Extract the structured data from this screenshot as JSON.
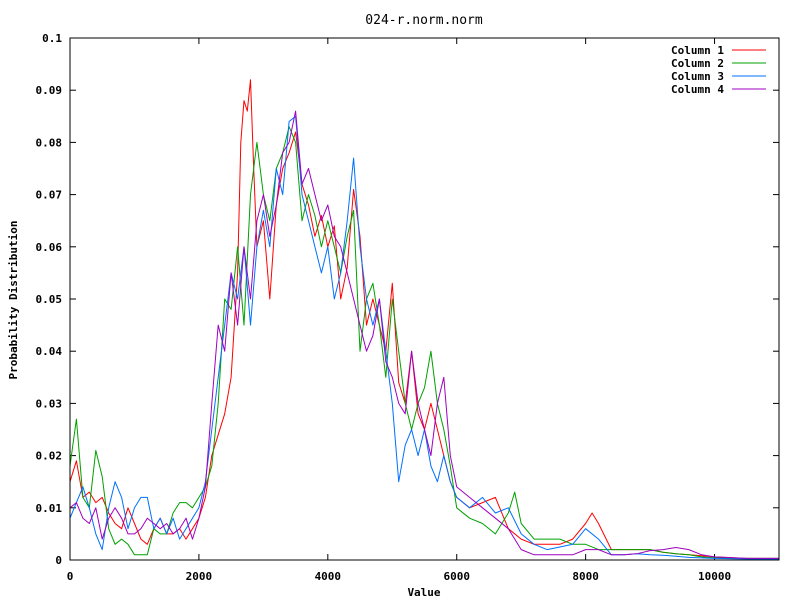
{
  "chart_data": {
    "type": "line",
    "title": "024-r.norm.norm",
    "xlabel": "Value",
    "ylabel": "Probability Distribution",
    "xlim": [
      0,
      11000
    ],
    "ylim": [
      0,
      0.1
    ],
    "x_ticks": [
      0,
      2000,
      4000,
      6000,
      8000,
      10000
    ],
    "x_tick_labels": [
      "0",
      "2000",
      "4000",
      "6000",
      "8000",
      "10000"
    ],
    "y_ticks": [
      0,
      0.01,
      0.02,
      0.03,
      0.04,
      0.05,
      0.06,
      0.07,
      0.08,
      0.09,
      0.1
    ],
    "y_tick_labels": [
      "0",
      "0.01",
      "0.02",
      "0.03",
      "0.04",
      "0.05",
      "0.06",
      "0.07",
      "0.08",
      "0.09",
      "0.1"
    ],
    "grid": false,
    "legend_position": "top-right",
    "series": [
      {
        "name": "Column 1",
        "color": "#ff0000",
        "x": [
          0,
          100,
          200,
          300,
          400,
          500,
          600,
          700,
          800,
          900,
          1000,
          1100,
          1200,
          1300,
          1400,
          1500,
          1600,
          1700,
          1800,
          1900,
          2000,
          2100,
          2200,
          2300,
          2400,
          2500,
          2600,
          2650,
          2700,
          2750,
          2800,
          2850,
          2900,
          3000,
          3100,
          3200,
          3300,
          3400,
          3500,
          3600,
          3700,
          3800,
          3900,
          4000,
          4100,
          4200,
          4300,
          4400,
          4500,
          4600,
          4700,
          4800,
          4900,
          5000,
          5100,
          5200,
          5300,
          5400,
          5500,
          5600,
          5700,
          5800,
          5900,
          6000,
          6200,
          6400,
          6600,
          6800,
          7000,
          7200,
          7400,
          7600,
          7800,
          8000,
          8100,
          8200,
          8400,
          8600,
          8800,
          9000,
          9200,
          9400,
          9600,
          9800,
          10000,
          10500,
          11000
        ],
        "values": [
          0.015,
          0.019,
          0.012,
          0.013,
          0.011,
          0.012,
          0.009,
          0.007,
          0.006,
          0.01,
          0.007,
          0.004,
          0.003,
          0.006,
          0.008,
          0.005,
          0.005,
          0.006,
          0.004,
          0.006,
          0.008,
          0.012,
          0.02,
          0.024,
          0.028,
          0.035,
          0.055,
          0.08,
          0.088,
          0.086,
          0.092,
          0.075,
          0.06,
          0.065,
          0.05,
          0.068,
          0.075,
          0.078,
          0.082,
          0.072,
          0.068,
          0.062,
          0.066,
          0.06,
          0.064,
          0.05,
          0.056,
          0.071,
          0.062,
          0.045,
          0.05,
          0.045,
          0.04,
          0.053,
          0.034,
          0.03,
          0.04,
          0.028,
          0.025,
          0.03,
          0.025,
          0.02,
          0.015,
          0.012,
          0.01,
          0.011,
          0.012,
          0.006,
          0.004,
          0.003,
          0.003,
          0.003,
          0.004,
          0.007,
          0.009,
          0.007,
          0.002,
          0.002,
          0.002,
          0.002,
          0.0015,
          0.0012,
          0.001,
          0.0008,
          0.0006,
          0.0003,
          0.0003
        ]
      },
      {
        "name": "Column 2",
        "color": "#00a000",
        "x": [
          0,
          100,
          200,
          300,
          400,
          500,
          600,
          700,
          800,
          900,
          1000,
          1100,
          1200,
          1300,
          1400,
          1500,
          1600,
          1700,
          1800,
          1900,
          2000,
          2100,
          2200,
          2300,
          2400,
          2500,
          2600,
          2700,
          2800,
          2900,
          3000,
          3100,
          3200,
          3300,
          3400,
          3500,
          3600,
          3700,
          3800,
          3900,
          4000,
          4100,
          4200,
          4300,
          4400,
          4500,
          4600,
          4700,
          4800,
          4900,
          5000,
          5100,
          5200,
          5300,
          5400,
          5500,
          5600,
          5700,
          5800,
          5900,
          6000,
          6200,
          6400,
          6600,
          6800,
          6900,
          7000,
          7200,
          7400,
          7600,
          7800,
          8000,
          8200,
          8400,
          8600,
          8800,
          9000,
          9200,
          9400,
          9600,
          9800,
          10000,
          10500,
          11000
        ],
        "values": [
          0.018,
          0.027,
          0.012,
          0.01,
          0.021,
          0.016,
          0.006,
          0.003,
          0.004,
          0.003,
          0.001,
          0.001,
          0.001,
          0.006,
          0.005,
          0.005,
          0.009,
          0.011,
          0.011,
          0.01,
          0.012,
          0.014,
          0.018,
          0.03,
          0.05,
          0.048,
          0.06,
          0.045,
          0.07,
          0.08,
          0.07,
          0.065,
          0.075,
          0.078,
          0.083,
          0.08,
          0.065,
          0.07,
          0.066,
          0.06,
          0.065,
          0.06,
          0.055,
          0.062,
          0.067,
          0.04,
          0.05,
          0.053,
          0.045,
          0.035,
          0.05,
          0.04,
          0.03,
          0.025,
          0.03,
          0.033,
          0.04,
          0.03,
          0.025,
          0.018,
          0.01,
          0.008,
          0.007,
          0.005,
          0.009,
          0.013,
          0.007,
          0.004,
          0.004,
          0.004,
          0.003,
          0.003,
          0.002,
          0.002,
          0.002,
          0.002,
          0.002,
          0.0015,
          0.0012,
          0.001,
          0.0006,
          0.0004,
          0.0003,
          0.0003
        ]
      },
      {
        "name": "Column 3",
        "color": "#0070ff",
        "x": [
          0,
          100,
          200,
          300,
          400,
          500,
          600,
          700,
          800,
          900,
          1000,
          1100,
          1200,
          1300,
          1400,
          1500,
          1600,
          1700,
          1800,
          1900,
          2000,
          2100,
          2200,
          2300,
          2400,
          2500,
          2600,
          2700,
          2800,
          2900,
          3000,
          3100,
          3200,
          3300,
          3400,
          3500,
          3600,
          3700,
          3800,
          3900,
          4000,
          4100,
          4200,
          4300,
          4400,
          4500,
          4600,
          4700,
          4800,
          4900,
          5000,
          5100,
          5200,
          5300,
          5400,
          5500,
          5600,
          5700,
          5800,
          5900,
          6000,
          6200,
          6400,
          6600,
          6800,
          7000,
          7200,
          7400,
          7600,
          7800,
          8000,
          8200,
          8400,
          8600,
          8800,
          9000,
          9200,
          9400,
          9600,
          9800,
          10000,
          10500,
          11000
        ],
        "values": [
          0.008,
          0.011,
          0.014,
          0.01,
          0.005,
          0.002,
          0.01,
          0.015,
          0.012,
          0.006,
          0.01,
          0.012,
          0.012,
          0.006,
          0.008,
          0.005,
          0.008,
          0.004,
          0.006,
          0.008,
          0.01,
          0.015,
          0.025,
          0.035,
          0.045,
          0.055,
          0.05,
          0.06,
          0.045,
          0.06,
          0.067,
          0.06,
          0.075,
          0.07,
          0.084,
          0.085,
          0.07,
          0.065,
          0.06,
          0.055,
          0.06,
          0.05,
          0.055,
          0.065,
          0.077,
          0.06,
          0.05,
          0.045,
          0.05,
          0.04,
          0.03,
          0.015,
          0.022,
          0.025,
          0.02,
          0.025,
          0.018,
          0.015,
          0.02,
          0.015,
          0.012,
          0.01,
          0.012,
          0.009,
          0.01,
          0.005,
          0.003,
          0.002,
          0.0025,
          0.003,
          0.006,
          0.004,
          0.001,
          0.001,
          0.0012,
          0.001,
          0.0009,
          0.0007,
          0.0005,
          0.0004,
          0.0003,
          0.0002,
          0.0002
        ]
      },
      {
        "name": "Column 4",
        "color": "#a000c0",
        "x": [
          0,
          100,
          200,
          300,
          400,
          500,
          600,
          700,
          800,
          900,
          1000,
          1100,
          1200,
          1300,
          1400,
          1500,
          1600,
          1700,
          1800,
          1900,
          2000,
          2100,
          2200,
          2300,
          2400,
          2500,
          2600,
          2700,
          2800,
          2900,
          3000,
          3100,
          3200,
          3300,
          3400,
          3500,
          3600,
          3700,
          3800,
          3900,
          4000,
          4100,
          4200,
          4300,
          4400,
          4500,
          4600,
          4700,
          4800,
          4900,
          5000,
          5100,
          5200,
          5300,
          5400,
          5500,
          5600,
          5700,
          5800,
          5900,
          6000,
          6200,
          6400,
          6600,
          6800,
          7000,
          7200,
          7400,
          7600,
          7800,
          8000,
          8200,
          8400,
          8600,
          8800,
          9000,
          9200,
          9400,
          9600,
          9800,
          10000,
          10500,
          11000
        ],
        "values": [
          0.01,
          0.011,
          0.008,
          0.007,
          0.01,
          0.004,
          0.008,
          0.01,
          0.008,
          0.005,
          0.005,
          0.006,
          0.008,
          0.007,
          0.006,
          0.007,
          0.005,
          0.006,
          0.008,
          0.004,
          0.008,
          0.014,
          0.03,
          0.045,
          0.04,
          0.055,
          0.045,
          0.06,
          0.05,
          0.065,
          0.07,
          0.062,
          0.068,
          0.078,
          0.08,
          0.086,
          0.072,
          0.075,
          0.07,
          0.065,
          0.068,
          0.062,
          0.06,
          0.055,
          0.05,
          0.045,
          0.04,
          0.043,
          0.05,
          0.038,
          0.035,
          0.03,
          0.028,
          0.04,
          0.03,
          0.025,
          0.02,
          0.03,
          0.035,
          0.02,
          0.014,
          0.012,
          0.01,
          0.008,
          0.006,
          0.002,
          0.001,
          0.001,
          0.001,
          0.001,
          0.002,
          0.002,
          0.001,
          0.001,
          0.0012,
          0.0018,
          0.002,
          0.0024,
          0.002,
          0.001,
          0.0006,
          0.0003,
          0.0003
        ]
      }
    ]
  }
}
